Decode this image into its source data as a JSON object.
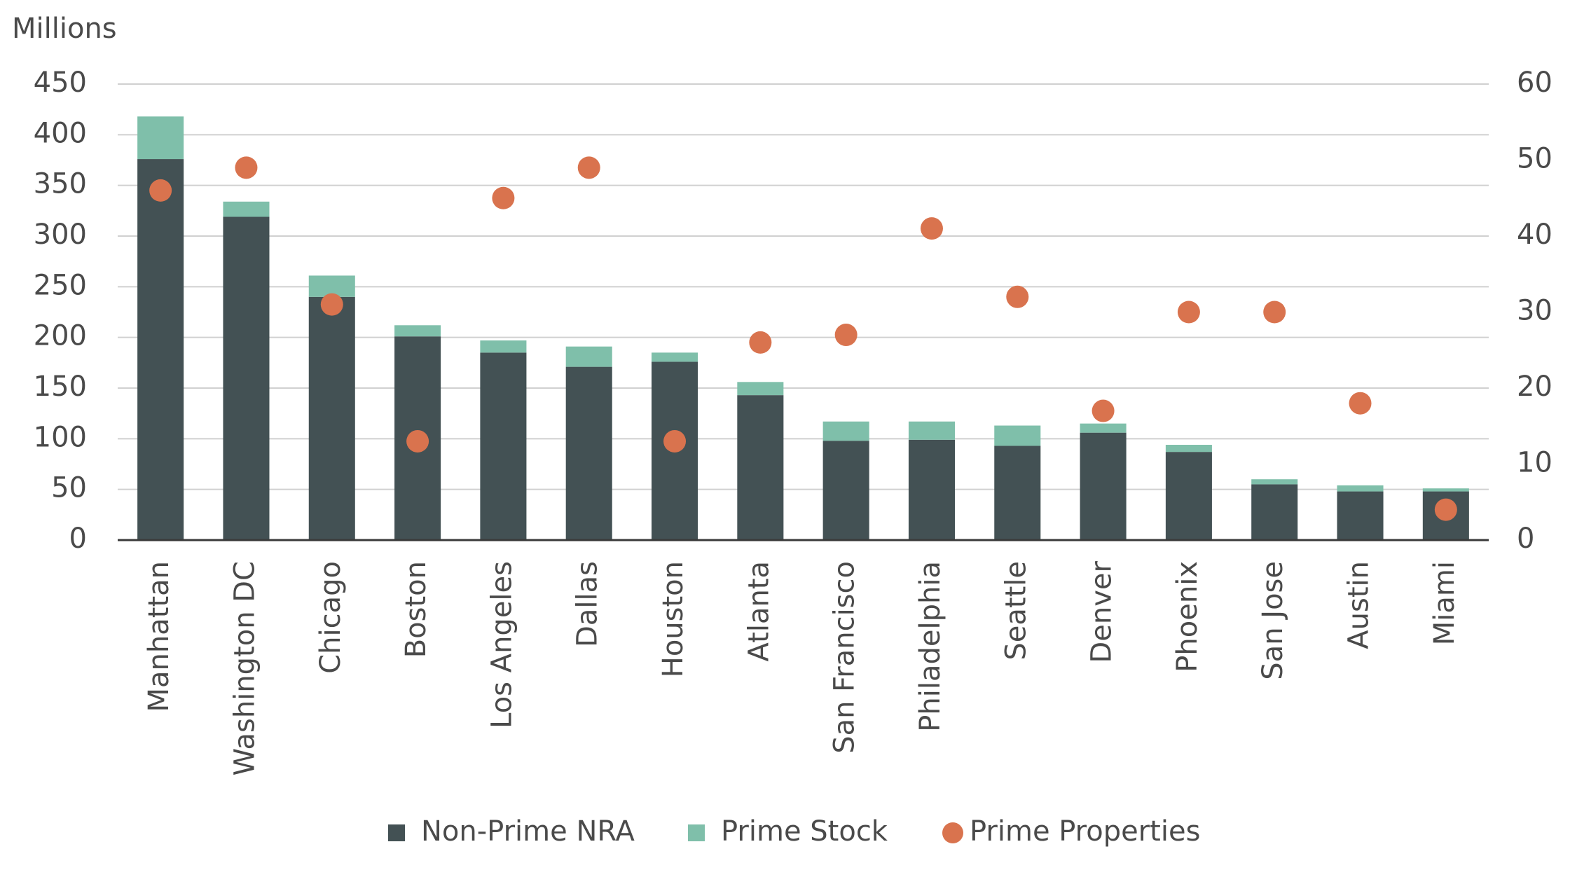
{
  "chart_data": {
    "type": "bar",
    "stacked": true,
    "y_label": "Millions",
    "categories": [
      "Manhattan",
      "Washington DC",
      "Chicago",
      "Boston",
      "Los Angeles",
      "Dallas",
      "Houston",
      "Atlanta",
      "San Francisco",
      "Philadelphia",
      "Seattle",
      "Denver",
      "Phoenix",
      "San Jose",
      "Austin",
      "Miami"
    ],
    "series": [
      {
        "name": "Non-Prime NRA",
        "color": "#435154",
        "type": "bar",
        "values": [
          376,
          319,
          240,
          201,
          185,
          171,
          176,
          143,
          98,
          99,
          93,
          106,
          87,
          55,
          48,
          48
        ]
      },
      {
        "name": "Prime Stock",
        "color": "#7fbfaa",
        "type": "bar",
        "values": [
          42,
          15,
          21,
          11,
          12,
          20,
          9,
          13,
          19,
          18,
          20,
          9,
          7,
          5,
          6,
          3
        ]
      },
      {
        "name": "Prime Properties",
        "color": "#d9734e",
        "type": "scatter",
        "axis": "y2",
        "values": [
          46,
          49,
          31,
          13,
          45,
          49,
          13,
          26,
          27,
          41,
          32,
          17,
          30,
          30,
          18,
          4
        ]
      }
    ],
    "ylim": [
      0,
      450
    ],
    "yticks": [
      0,
      50,
      100,
      150,
      200,
      250,
      300,
      350,
      400,
      450
    ],
    "y2lim": [
      0,
      60
    ],
    "y2ticks": [
      0,
      10,
      20,
      30,
      40,
      50,
      60
    ],
    "grid": true,
    "legend": "bottom"
  }
}
